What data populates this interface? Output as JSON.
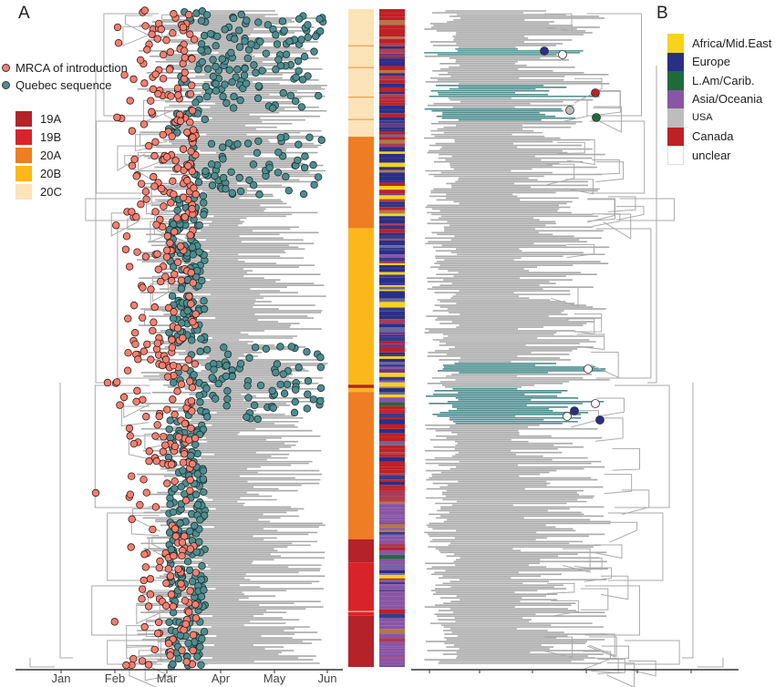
{
  "panels": {
    "a_label": "A",
    "b_label": "B"
  },
  "legend_points": [
    {
      "label": "MRCA of introduction",
      "color": "#f28072"
    },
    {
      "label": "Quebec sequence",
      "color": "#4e8d8f"
    }
  ],
  "legend_clades": [
    {
      "label": "19A",
      "color": "#b52228"
    },
    {
      "label": "19B",
      "color": "#d9232a"
    },
    {
      "label": "20A",
      "color": "#ee7d24"
    },
    {
      "label": "20B",
      "color": "#fbb71b"
    },
    {
      "label": "20C",
      "color": "#fde3b8"
    }
  ],
  "legend_regions": [
    {
      "label": "Africa/Mid.East",
      "color": "#f7d31a"
    },
    {
      "label": "Europe",
      "color": "#2a2f86"
    },
    {
      "label": "L.Am/Carib.",
      "color": "#1e6b3a"
    },
    {
      "label": "Asia/Oceania",
      "color": "#8a55a6"
    },
    {
      "label": "USA",
      "color": "#bdbdbd"
    },
    {
      "label": "Canada",
      "color": "#bf2026"
    },
    {
      "label": "unclear",
      "color": "#ffffff"
    }
  ],
  "time_axis": {
    "ticks": [
      "Jan",
      "Feb",
      "Mar",
      "Apr",
      "May",
      "Jun"
    ]
  },
  "colors": {
    "branch": "#aaaaaa",
    "highlight_branch": "#4e8d8f",
    "axis": "#333333"
  },
  "clade_bar_segments": [
    {
      "clade": "20C",
      "from": 0.0,
      "to": 0.194
    },
    {
      "clade": "20A",
      "from": 0.194,
      "to": 0.333
    },
    {
      "clade": "20B",
      "from": 0.333,
      "to": 0.571
    },
    {
      "clade": "19A",
      "from": 0.571,
      "to": 0.576
    },
    {
      "clade": "20B",
      "from": 0.576,
      "to": 0.582
    },
    {
      "clade": "20A",
      "from": 0.582,
      "to": 0.806
    },
    {
      "clade": "19A",
      "from": 0.806,
      "to": 0.841
    },
    {
      "clade": "19B",
      "from": 0.841,
      "to": 0.922
    },
    {
      "clade": "19A",
      "from": 0.922,
      "to": 1.0
    }
  ]
}
